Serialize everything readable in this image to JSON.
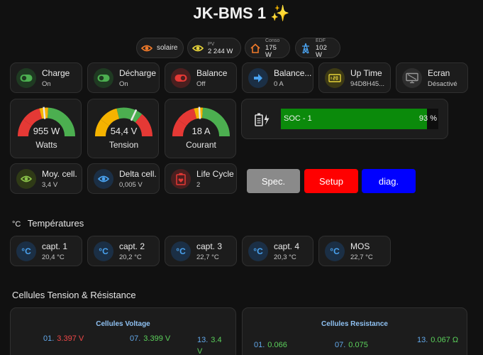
{
  "header": {
    "title": "JK-BMS 1",
    "sparkles": "✨"
  },
  "chips": {
    "solaire": {
      "label": "solaire"
    },
    "pv": {
      "label": "PV",
      "value": "2 244 W"
    },
    "conso": {
      "label": "Conso",
      "value": "175 W"
    },
    "edf": {
      "label": "EDF",
      "value": "102 W"
    }
  },
  "tiles_row1": [
    {
      "name": "Charge",
      "state": "On"
    },
    {
      "name": "Décharge",
      "state": "On"
    },
    {
      "name": "Balance",
      "state": "Off"
    },
    {
      "name": "Balance...",
      "state": "0 A"
    },
    {
      "name": "Up Time",
      "state": "94D8H45..."
    },
    {
      "name": "Ecran",
      "state": "Désactivé"
    }
  ],
  "gauges": [
    {
      "value": "955 W",
      "label": "Watts",
      "needle_fraction": 0.47
    },
    {
      "value": "54,4 V",
      "label": "Tension",
      "needle_fraction": 0.64
    },
    {
      "value": "18 A",
      "label": "Courant",
      "needle_fraction": 0.48
    }
  ],
  "soc": {
    "label": "SOC - 1",
    "percent": 93,
    "percent_text": "93 %"
  },
  "tiles_row3": [
    {
      "name": "Moy. cell.",
      "state": "3,4 V"
    },
    {
      "name": "Delta cell.",
      "state": "0,005 V"
    },
    {
      "name": "Life Cycle",
      "state": "2"
    }
  ],
  "buttons": {
    "spec": "Spec.",
    "setup": "Setup",
    "diag": "diag."
  },
  "temperatures": {
    "title": "Températures",
    "icon_text": "°C",
    "sensors": [
      {
        "name": "capt. 1",
        "value": "20,4 °C"
      },
      {
        "name": "capt. 2",
        "value": "20,2 °C"
      },
      {
        "name": "capt. 3",
        "value": "22,7 °C"
      },
      {
        "name": "capt. 4",
        "value": "20,3 °C"
      },
      {
        "name": "MOS",
        "value": "22,7 °C"
      }
    ]
  },
  "cells": {
    "title": "Cellules Tension & Résistance",
    "voltage": {
      "title": "Cellules Voltage",
      "items": [
        {
          "idx": "01.",
          "value": "3.397 V"
        },
        {
          "idx": "07.",
          "value": "3.399 V"
        },
        {
          "idx": "13.",
          "value": "3.4 V"
        }
      ]
    },
    "resistance": {
      "title": "Cellules Resistance",
      "items": [
        {
          "idx": "01.",
          "value": "0.066"
        },
        {
          "idx": "07.",
          "value": "0.075"
        },
        {
          "idx": "13.",
          "value": "0.067 Ω"
        }
      ]
    }
  },
  "colors": {
    "green": "#0b8a0b",
    "red": "#ff0000",
    "blue": "#0000ff",
    "grey_btn": "#8a8a8a",
    "accent_blue": "#4aa3f0",
    "on_green": "#4caf50",
    "off_red": "#e53935"
  }
}
